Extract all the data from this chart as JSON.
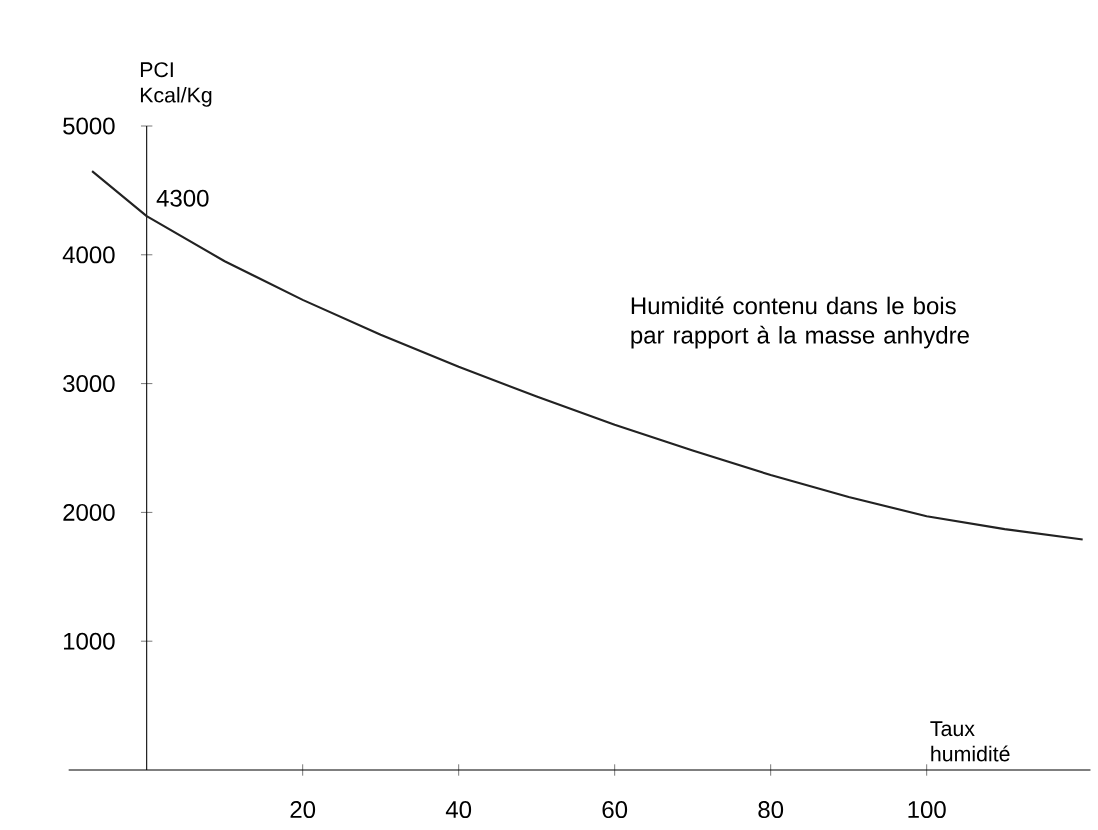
{
  "chart_data": {
    "type": "line",
    "xlabel": "Taux humidité",
    "ylabel": "PCI Kcal/Kg",
    "x": [
      -7,
      0,
      10,
      20,
      30,
      40,
      50,
      60,
      70,
      80,
      90,
      100,
      110,
      120
    ],
    "values": [
      4650,
      4300,
      3950,
      3650,
      3380,
      3130,
      2900,
      2680,
      2480,
      2290,
      2120,
      1970,
      1870,
      1790
    ],
    "color": "#222222",
    "xlim": [
      -10,
      121
    ],
    "ylim": [
      0,
      5000
    ],
    "xticks": [
      20,
      40,
      60,
      80,
      100
    ],
    "yticks": [
      1000,
      2000,
      3000,
      4000,
      5000
    ],
    "annotations": [
      {
        "text": "4300",
        "x": 0,
        "y": 4300
      },
      "Humidité contenu dans le bois par rapport à la masse anhydre"
    ]
  }
}
